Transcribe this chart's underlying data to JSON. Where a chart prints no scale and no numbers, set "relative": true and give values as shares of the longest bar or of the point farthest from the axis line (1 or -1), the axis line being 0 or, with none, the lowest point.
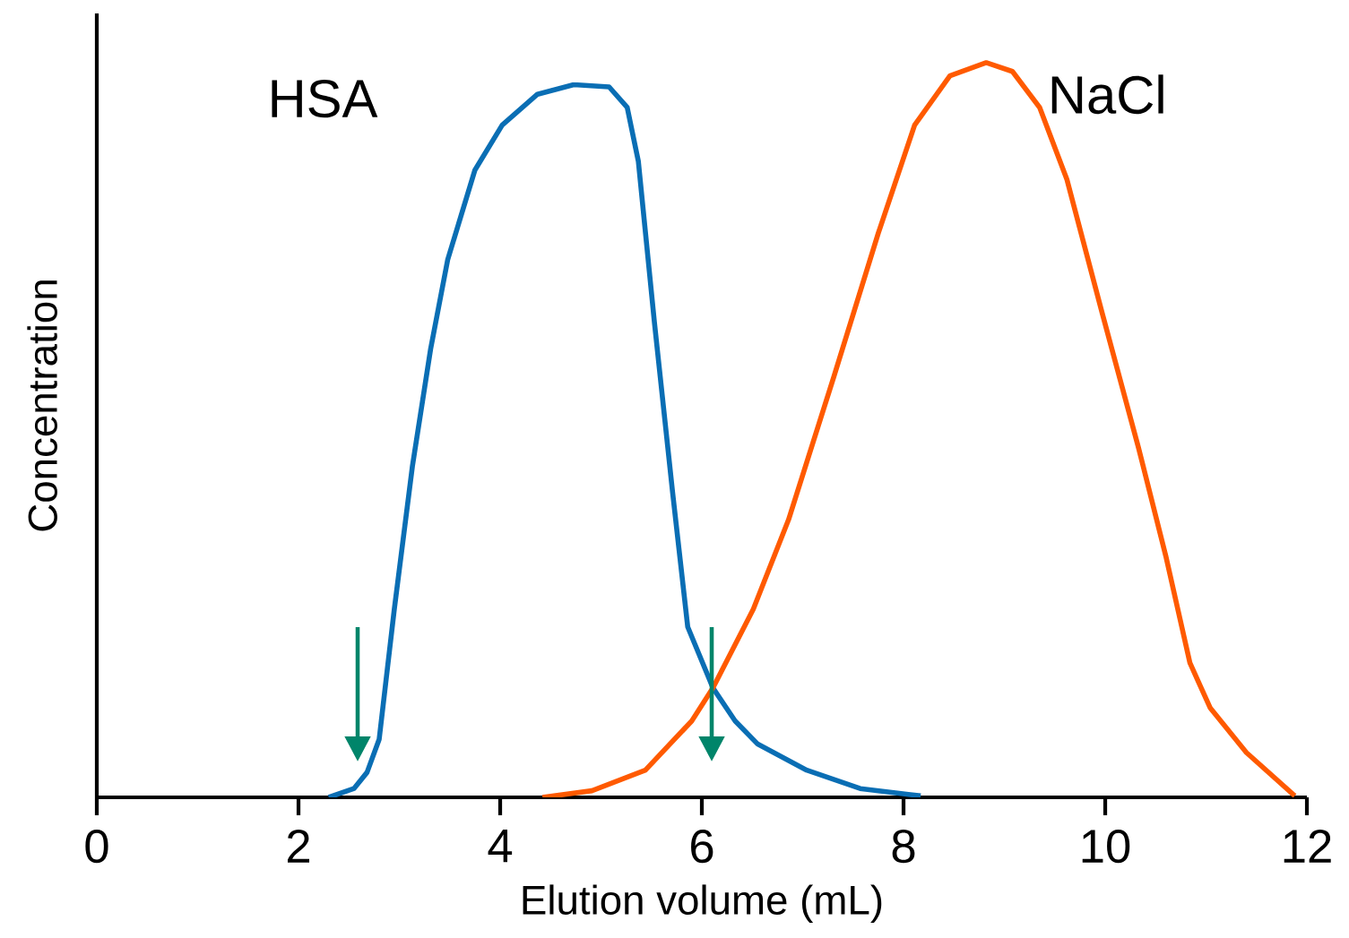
{
  "chart_data": {
    "type": "line",
    "xlabel": "Elution volume (mL)",
    "ylabel": "Concentration",
    "relative": true,
    "xlim": [
      0,
      12
    ],
    "xticks": [
      0,
      2,
      4,
      6,
      8,
      10,
      12
    ],
    "grid": false,
    "legend": false,
    "marker": "none",
    "line_style": "solid",
    "series": [
      {
        "name": "HSA",
        "color": "#0a6eb4",
        "x": [
          2.3,
          2.55,
          2.68,
          2.8,
          2.95,
          3.13,
          3.31,
          3.48,
          3.75,
          4.02,
          4.37,
          4.73,
          5.08,
          5.26,
          5.37,
          5.53,
          5.71,
          5.86,
          6.11,
          6.33,
          6.55,
          7.04,
          7.57,
          8.17
        ],
        "values": [
          0,
          0.012,
          0.034,
          0.079,
          0.256,
          0.451,
          0.61,
          0.732,
          0.854,
          0.915,
          0.957,
          0.97,
          0.967,
          0.939,
          0.866,
          0.646,
          0.415,
          0.232,
          0.149,
          0.104,
          0.073,
          0.037,
          0.012,
          0.002
        ]
      },
      {
        "name": "NaCl",
        "color": "#ff5a00",
        "x": [
          4.42,
          4.91,
          5.44,
          5.9,
          6.11,
          6.51,
          6.86,
          7.31,
          7.75,
          8.11,
          8.46,
          8.82,
          9.08,
          9.35,
          9.62,
          9.97,
          10.33,
          10.6,
          10.84,
          11.04,
          11.4,
          11.88
        ],
        "values": [
          0,
          0.009,
          0.037,
          0.104,
          0.149,
          0.256,
          0.378,
          0.573,
          0.768,
          0.915,
          0.982,
          1.0,
          0.988,
          0.939,
          0.841,
          0.659,
          0.476,
          0.329,
          0.183,
          0.122,
          0.061,
          0.002
        ]
      }
    ]
  }
}
